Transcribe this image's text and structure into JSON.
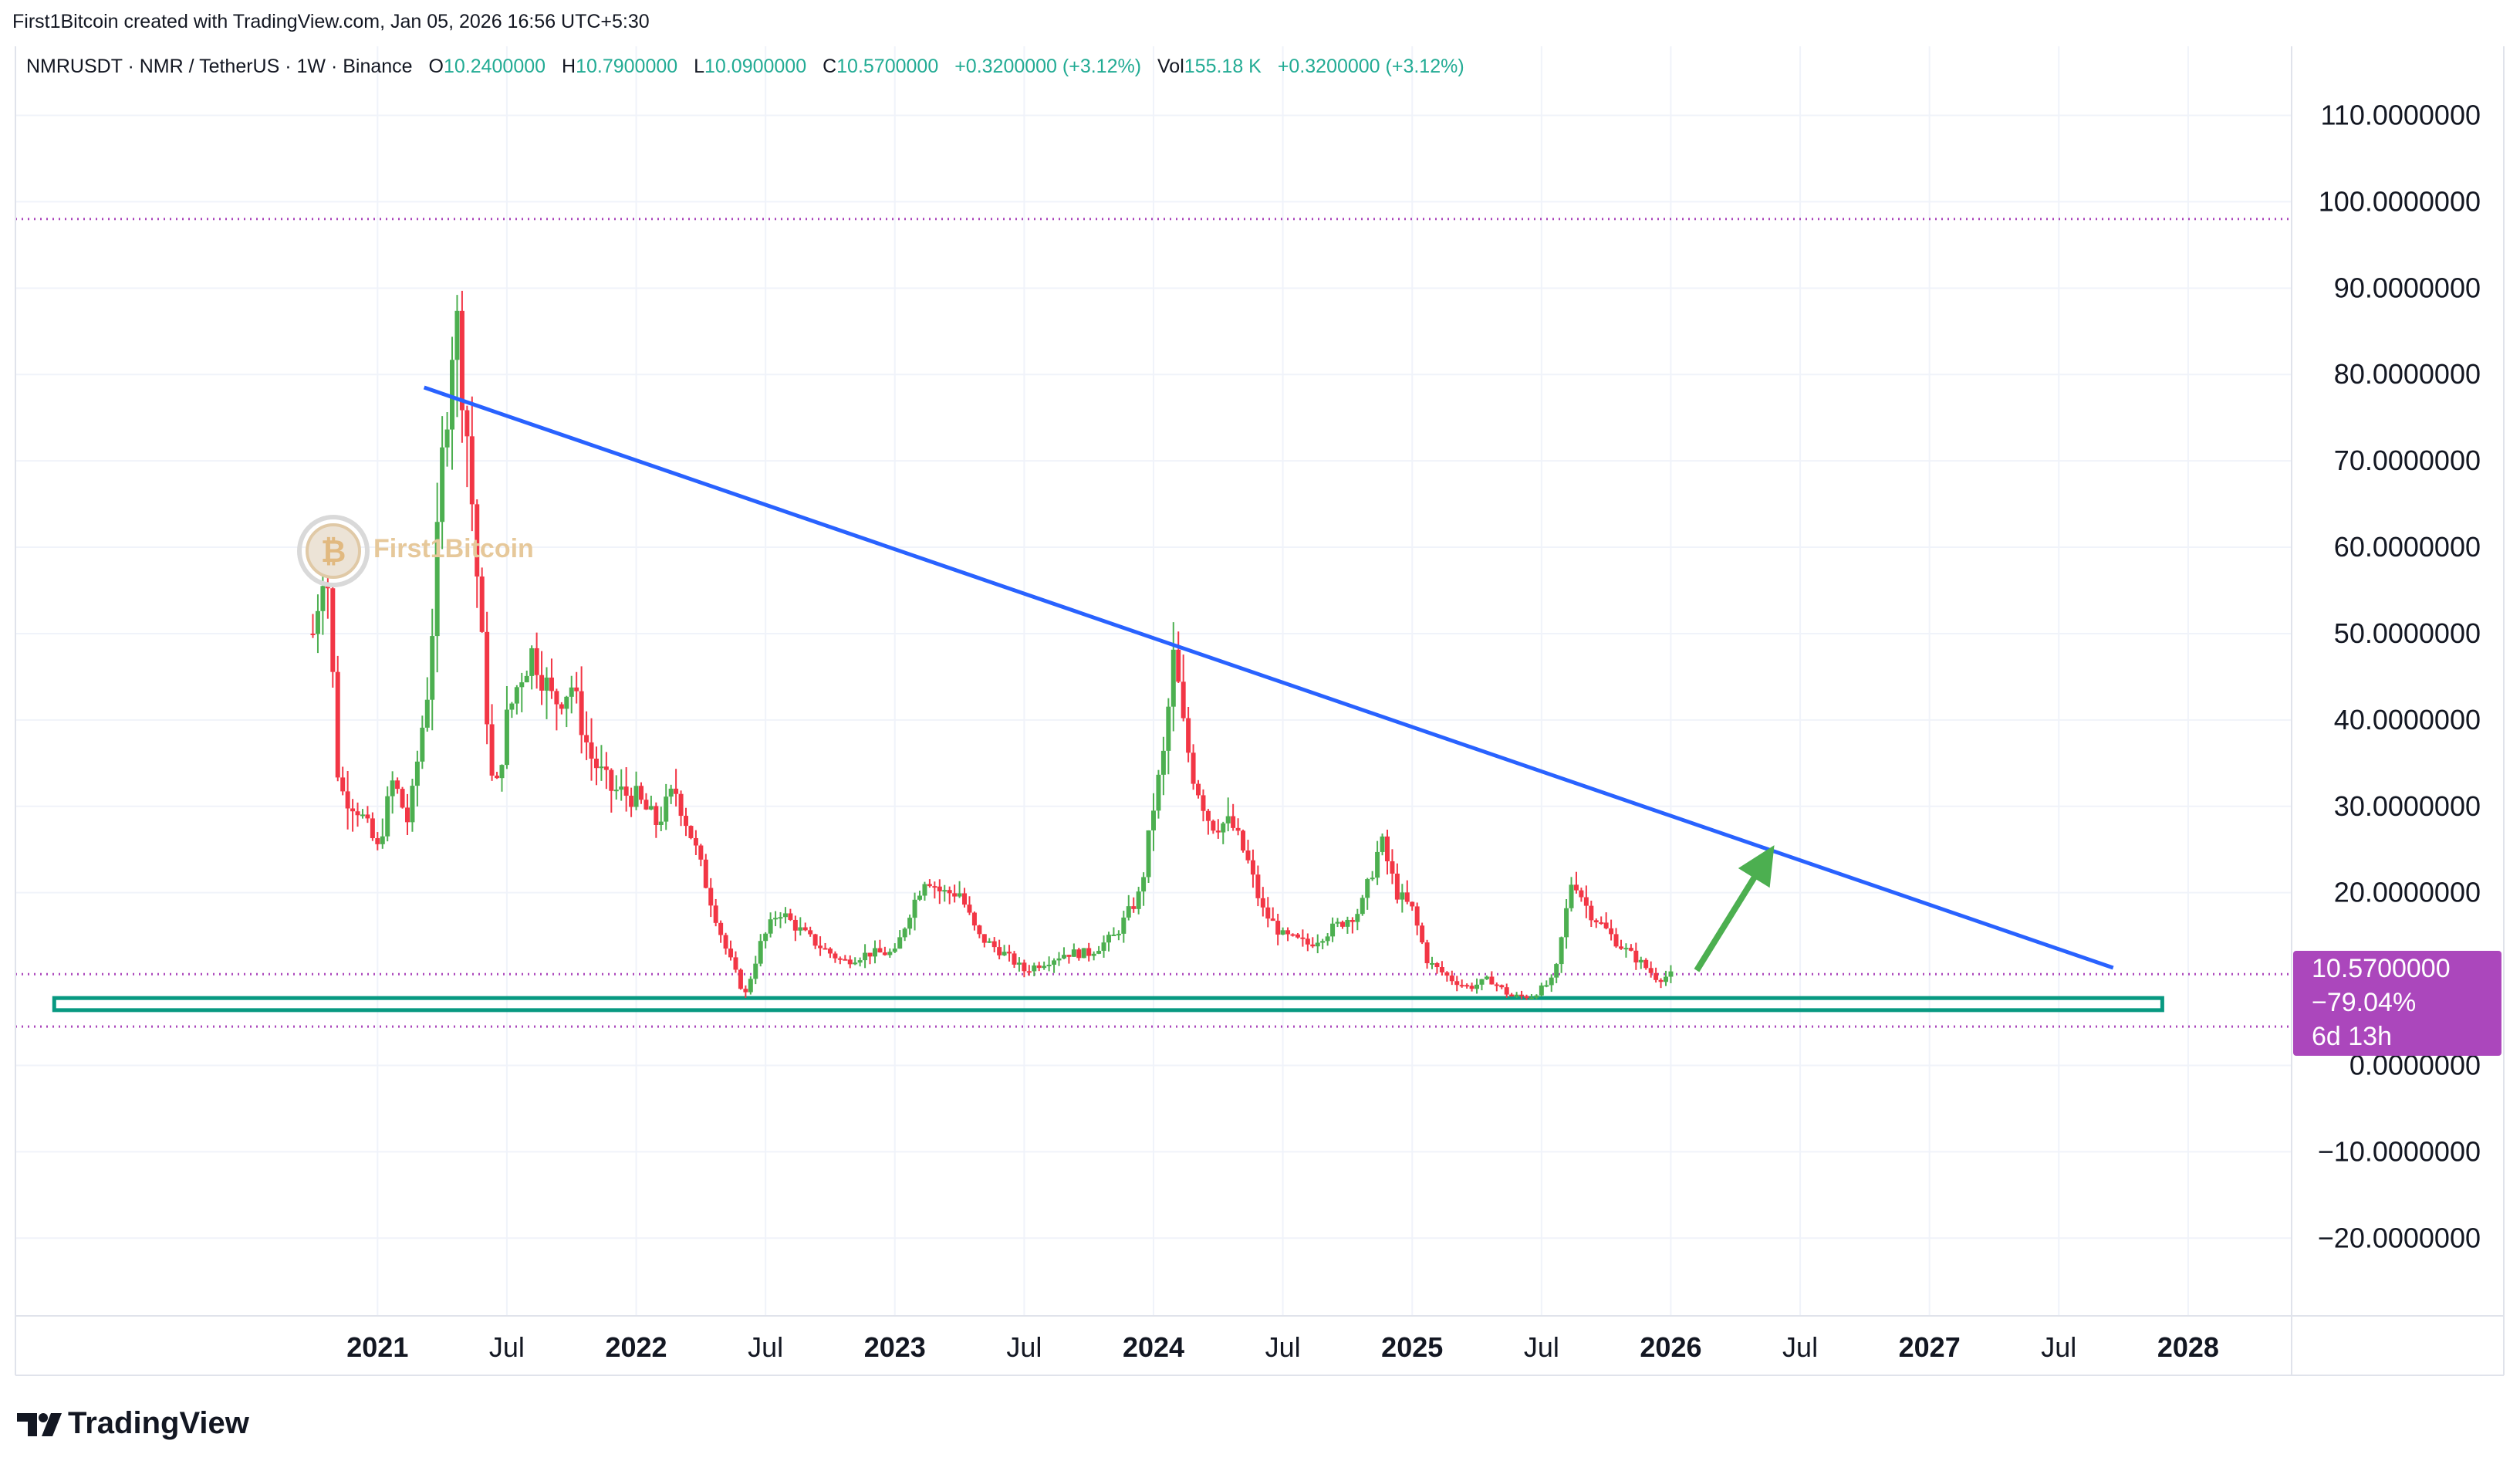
{
  "header": {
    "attribution": "First1Bitcoin created with TradingView.com, Jan 05, 2026 16:56 UTC+5:30"
  },
  "legend": {
    "symbol": "NMRUSDT · NMR / TetherUS · 1W · Binance",
    "open_label": "O",
    "open": "10.2400000",
    "high_label": "H",
    "high": "10.7900000",
    "low_label": "L",
    "low": "10.0900000",
    "close_label": "C",
    "close": "10.5700000",
    "change": "+0.3200000 (+3.12%)",
    "vol_label": "Vol",
    "vol": "155.18 K",
    "vol_change": "+0.3200000 (+3.12%)"
  },
  "price_badge": {
    "price": "10.5700000",
    "change_pct": "−79.04%",
    "countdown": "6d 13h"
  },
  "watermark": {
    "text": "First1Bitcoin"
  },
  "footer": {
    "logo_text": "TradingView"
  },
  "colors": {
    "up": "#4caf50",
    "down": "#f23645",
    "trendline": "#2962ff",
    "support_box": "#089981",
    "arrow": "#4caf50",
    "level": "#ab47bc",
    "badge": "#ab47bc",
    "grid": "#f0f3fa"
  },
  "chart_data": {
    "type": "candlestick",
    "symbol": "NMRUSDT",
    "interval": "1W",
    "y_ticks": [
      "110.0000000",
      "100.0000000",
      "90.0000000",
      "80.0000000",
      "70.0000000",
      "60.0000000",
      "50.0000000",
      "40.0000000",
      "30.0000000",
      "20.0000000",
      "0.0000000",
      "−10.0000000",
      "−20.0000000"
    ],
    "y_tick_values": [
      110,
      100,
      90,
      80,
      70,
      60,
      50,
      40,
      30,
      20,
      0,
      -10,
      -20
    ],
    "ylim": [
      -29,
      118
    ],
    "x_ticks": [
      {
        "label": "2021",
        "t": 2021.0,
        "bold": true
      },
      {
        "label": "Jul",
        "t": 2021.5,
        "bold": false
      },
      {
        "label": "2022",
        "t": 2022.0,
        "bold": true
      },
      {
        "label": "Jul",
        "t": 2022.5,
        "bold": false
      },
      {
        "label": "2023",
        "t": 2023.0,
        "bold": true
      },
      {
        "label": "Jul",
        "t": 2023.5,
        "bold": false
      },
      {
        "label": "2024",
        "t": 2024.0,
        "bold": true
      },
      {
        "label": "Jul",
        "t": 2024.5,
        "bold": false
      },
      {
        "label": "2025",
        "t": 2025.0,
        "bold": true
      },
      {
        "label": "Jul",
        "t": 2025.5,
        "bold": false
      },
      {
        "label": "2026",
        "t": 2026.0,
        "bold": true
      },
      {
        "label": "Jul",
        "t": 2026.5,
        "bold": false
      },
      {
        "label": "2027",
        "t": 2027.0,
        "bold": true
      },
      {
        "label": "Jul",
        "t": 2027.5,
        "bold": false
      },
      {
        "label": "2028",
        "t": 2028.0,
        "bold": true
      }
    ],
    "xlim": [
      2019.6,
      2028.4
    ],
    "price_path": [
      [
        2020.75,
        50
      ],
      [
        2020.8,
        60
      ],
      [
        2020.85,
        32
      ],
      [
        2020.92,
        30
      ],
      [
        2021.0,
        25
      ],
      [
        2021.06,
        33
      ],
      [
        2021.12,
        28
      ],
      [
        2021.2,
        45
      ],
      [
        2021.25,
        70
      ],
      [
        2021.3,
        88
      ],
      [
        2021.35,
        72
      ],
      [
        2021.4,
        50
      ],
      [
        2021.45,
        30
      ],
      [
        2021.5,
        40
      ],
      [
        2021.55,
        45
      ],
      [
        2021.6,
        48
      ],
      [
        2021.68,
        42
      ],
      [
        2021.75,
        44
      ],
      [
        2021.82,
        36
      ],
      [
        2021.9,
        32
      ],
      [
        2022.0,
        31
      ],
      [
        2022.08,
        28
      ],
      [
        2022.15,
        32
      ],
      [
        2022.22,
        26
      ],
      [
        2022.28,
        20
      ],
      [
        2022.34,
        14
      ],
      [
        2022.42,
        8
      ],
      [
        2022.48,
        14
      ],
      [
        2022.55,
        18
      ],
      [
        2022.62,
        16
      ],
      [
        2022.7,
        14
      ],
      [
        2022.8,
        12
      ],
      [
        2022.9,
        13
      ],
      [
        2023.0,
        13
      ],
      [
        2023.06,
        18
      ],
      [
        2023.12,
        22
      ],
      [
        2023.18,
        20
      ],
      [
        2023.25,
        20
      ],
      [
        2023.32,
        15
      ],
      [
        2023.42,
        13
      ],
      [
        2023.5,
        11
      ],
      [
        2023.58,
        12
      ],
      [
        2023.66,
        13
      ],
      [
        2023.75,
        13
      ],
      [
        2023.85,
        15
      ],
      [
        2023.95,
        20
      ],
      [
        2024.0,
        30
      ],
      [
        2024.04,
        36
      ],
      [
        2024.08,
        48
      ],
      [
        2024.11,
        40
      ],
      [
        2024.15,
        34
      ],
      [
        2024.22,
        28
      ],
      [
        2024.3,
        28
      ],
      [
        2024.36,
        24
      ],
      [
        2024.42,
        18
      ],
      [
        2024.5,
        15
      ],
      [
        2024.6,
        14
      ],
      [
        2024.7,
        16
      ],
      [
        2024.8,
        18
      ],
      [
        2024.88,
        26
      ],
      [
        2024.94,
        20
      ],
      [
        2025.0,
        18
      ],
      [
        2025.06,
        12
      ],
      [
        2025.15,
        10
      ],
      [
        2025.22,
        9
      ],
      [
        2025.3,
        10
      ],
      [
        2025.38,
        8
      ],
      [
        2025.46,
        8
      ],
      [
        2025.55,
        10
      ],
      [
        2025.62,
        22
      ],
      [
        2025.68,
        18
      ],
      [
        2025.74,
        16
      ],
      [
        2025.8,
        14
      ],
      [
        2025.88,
        12
      ],
      [
        2025.95,
        10
      ],
      [
        2026.01,
        10.57
      ]
    ],
    "levels": [
      98,
      10.57,
      4.5
    ],
    "trendline": [
      [
        2021.18,
        78.5
      ],
      [
        2027.71,
        11.3
      ]
    ],
    "support_box": {
      "x0": 2019.75,
      "x1": 2027.9,
      "y0": 6.4,
      "y1": 7.8
    },
    "arrow": {
      "from": [
        2026.1,
        11.0
      ],
      "to": [
        2026.4,
        25.5
      ]
    }
  }
}
